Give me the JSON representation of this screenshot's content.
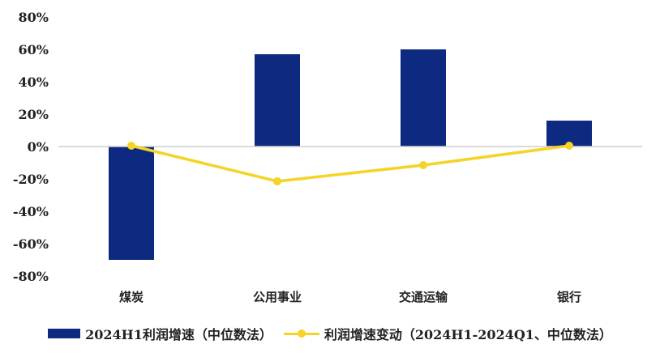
{
  "chart_data": {
    "type": "bar",
    "categories": [
      "煤炭",
      "公用事业",
      "交通运输",
      "银行"
    ],
    "ylim": [
      -80,
      80
    ],
    "yticks": [
      80,
      60,
      40,
      20,
      0,
      -20,
      -40,
      -60,
      -80
    ],
    "ytick_labels": [
      "80%",
      "60%",
      "40%",
      "20%",
      "0%",
      "-20%",
      "-40%",
      "-60%",
      "-80%"
    ],
    "grid": false,
    "legend_position": "bottom",
    "series": [
      {
        "name": "2024H1利润增速（中位数法）",
        "type": "bar",
        "color": "#0d2a80",
        "values": [
          -70,
          57,
          60,
          16
        ]
      },
      {
        "name": "利润增速变动（2024H1-2024Q1、中位数法）",
        "type": "line",
        "color": "#f5d327",
        "values": [
          0.5,
          -21.5,
          -11.5,
          0.5
        ]
      }
    ]
  }
}
